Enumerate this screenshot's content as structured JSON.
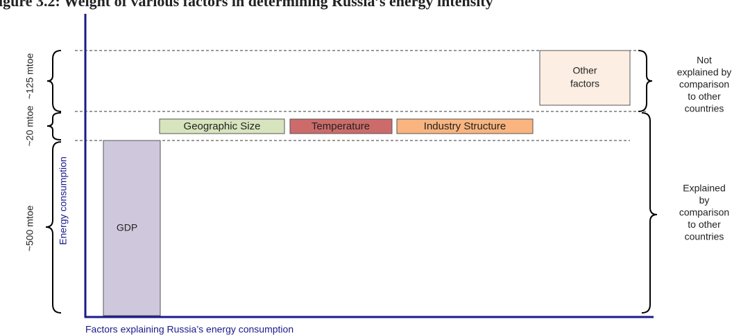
{
  "title": "igure 3.2: Weight of various factors in determining Russia’s energy intensity",
  "y_axis_label": "Energy consumption",
  "x_axis_label": "Factors explaining Russia’s energy consumption",
  "left_labels": [
    "~125 mtoe",
    "~20 mtoe",
    "~500 mtoe"
  ],
  "boxes": {
    "gdp": "GDP",
    "geographic_size": "Geographic Size",
    "temperature": "Temperature",
    "industry_structure": "Industry Structure",
    "other_factors": [
      "Other",
      "factors"
    ]
  },
  "right_labels": {
    "not_explained": [
      "Not",
      "explained by",
      "comparison",
      "to other",
      "countries"
    ],
    "explained": [
      "Explained",
      "by",
      "comparison",
      "to other",
      "countries"
    ]
  }
}
